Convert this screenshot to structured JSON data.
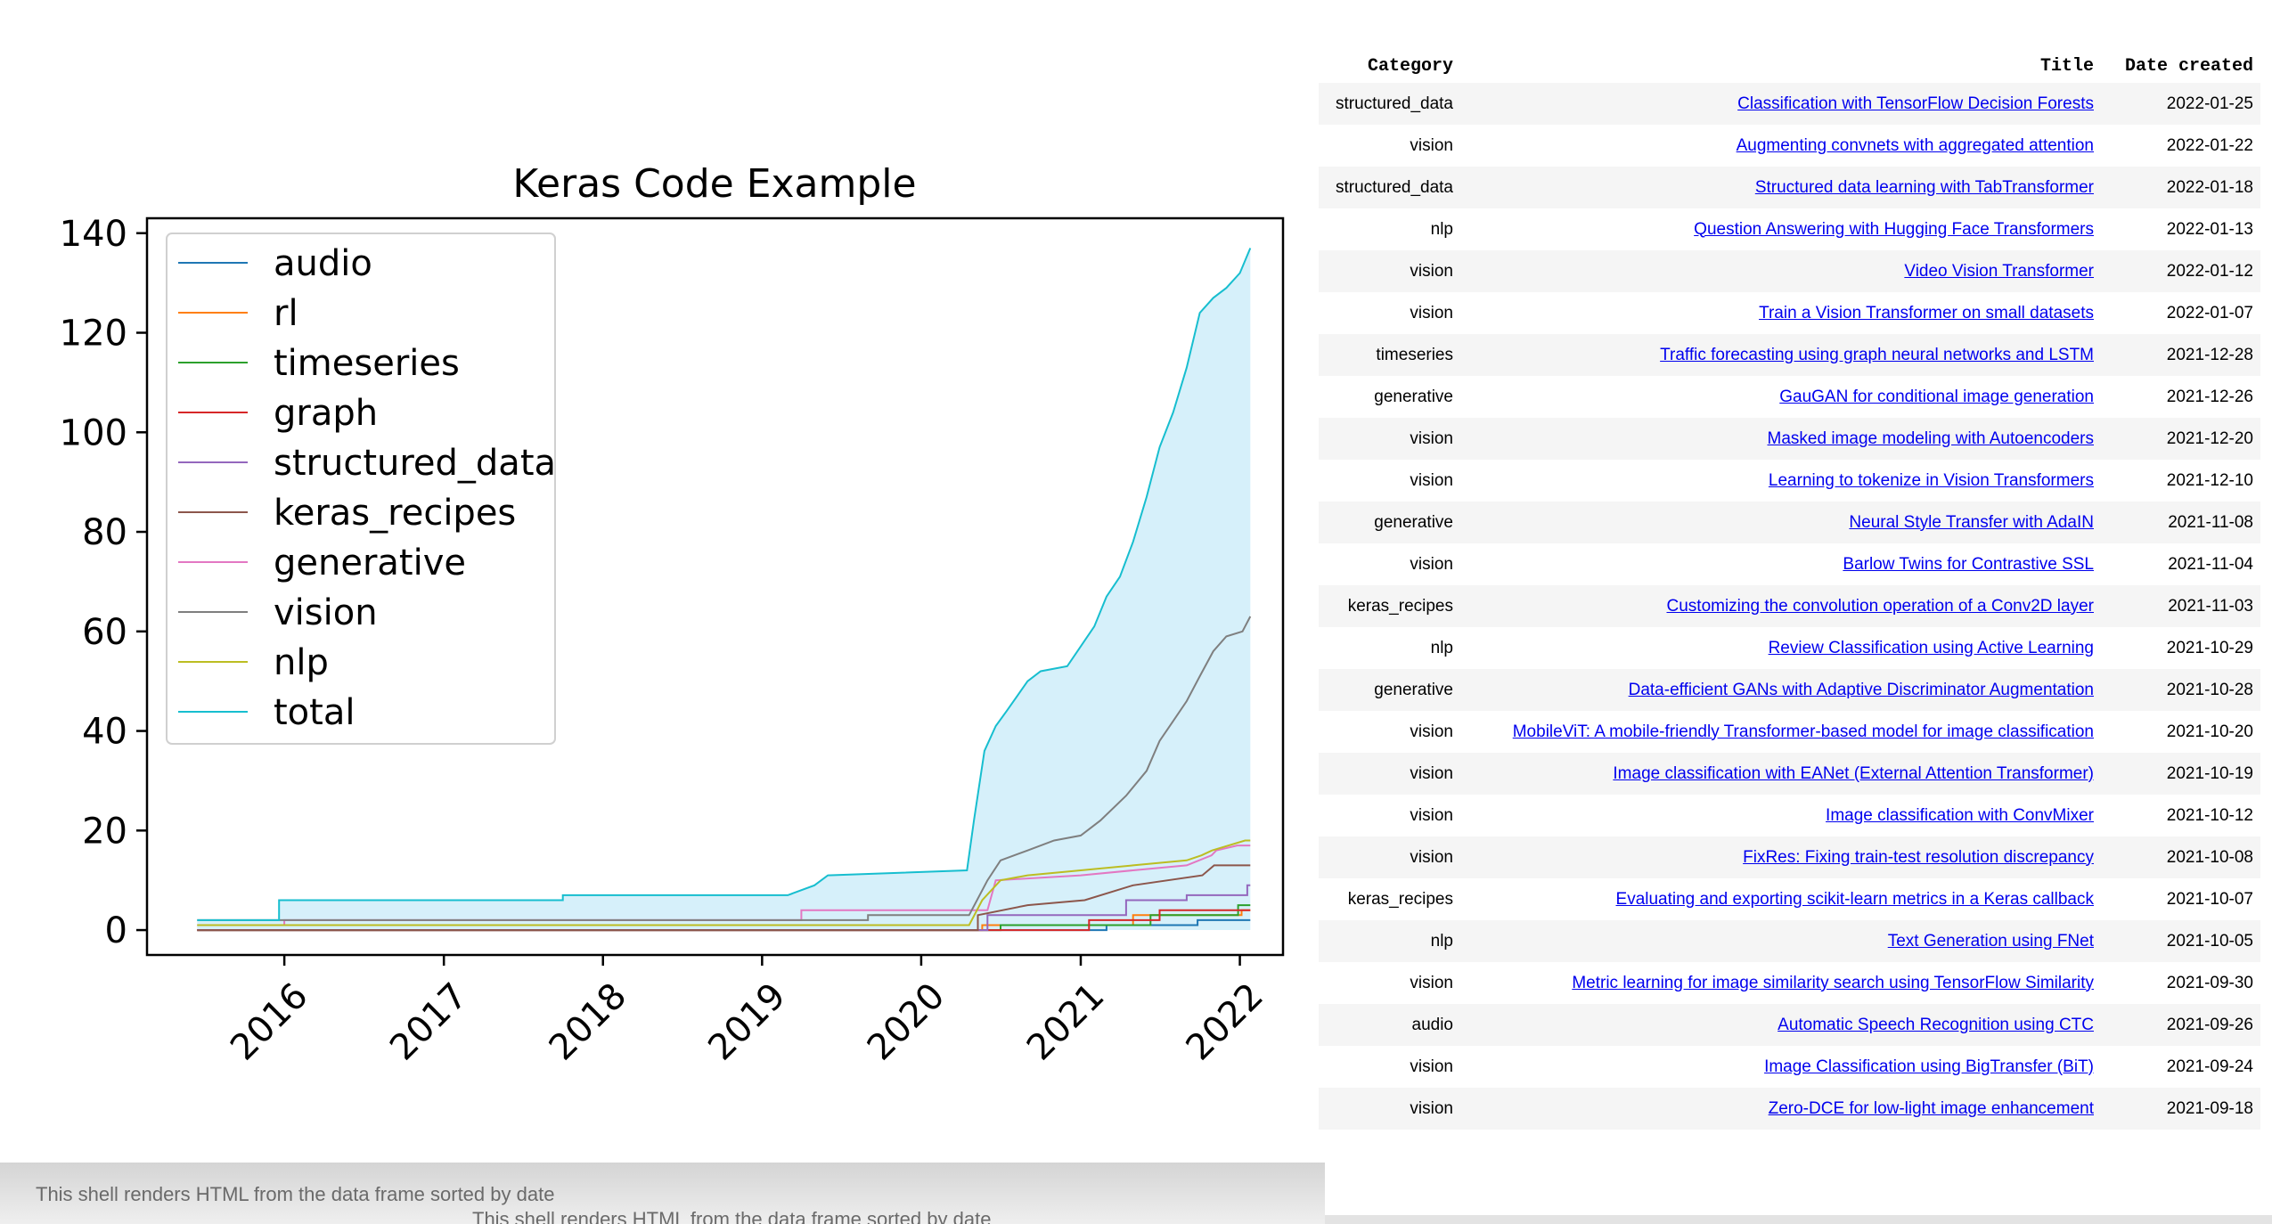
{
  "chart_data": {
    "type": "area",
    "title": "Keras Code Example",
    "xlabel": "",
    "ylabel": "",
    "ylim": [
      -5,
      143
    ],
    "xlim": [
      "2015-02-20",
      "2022-04-10"
    ],
    "yticks": [
      0,
      20,
      40,
      60,
      80,
      100,
      120,
      140
    ],
    "xticks": [
      "2016",
      "2017",
      "2018",
      "2019",
      "2020",
      "2021",
      "2022"
    ],
    "legend_placement": "top-left",
    "grid": false,
    "series": [
      {
        "name": "audio",
        "color": "#1f77b4",
        "points": [
          [
            "2015-06-15",
            0
          ],
          [
            "2021-03-01",
            0
          ],
          [
            "2021-03-01",
            1
          ],
          [
            "2021-09-26",
            1
          ],
          [
            "2021-09-26",
            2
          ],
          [
            "2022-01-25",
            2
          ]
        ]
      },
      {
        "name": "rl",
        "color": "#ff7f0e",
        "points": [
          [
            "2015-06-15",
            0
          ],
          [
            "2020-05-20",
            0
          ],
          [
            "2020-05-20",
            1
          ],
          [
            "2021-05-01",
            1
          ],
          [
            "2021-05-01",
            3
          ],
          [
            "2022-01-05",
            3
          ],
          [
            "2022-01-05",
            4
          ],
          [
            "2022-01-25",
            4
          ]
        ]
      },
      {
        "name": "timeseries",
        "color": "#2ca02c",
        "points": [
          [
            "2015-06-15",
            0
          ],
          [
            "2020-07-01",
            0
          ],
          [
            "2020-07-01",
            1
          ],
          [
            "2021-06-10",
            1
          ],
          [
            "2021-06-10",
            3
          ],
          [
            "2021-12-28",
            3
          ],
          [
            "2021-12-28",
            5
          ],
          [
            "2022-01-25",
            5
          ]
        ]
      },
      {
        "name": "graph",
        "color": "#d62728",
        "points": [
          [
            "2015-06-15",
            0
          ],
          [
            "2021-01-20",
            0
          ],
          [
            "2021-01-20",
            2
          ],
          [
            "2021-07-01",
            2
          ],
          [
            "2021-07-01",
            4
          ],
          [
            "2022-01-25",
            4
          ]
        ]
      },
      {
        "name": "structured_data",
        "color": "#9467bd",
        "points": [
          [
            "2015-06-15",
            0
          ],
          [
            "2020-06-01",
            0
          ],
          [
            "2020-06-01",
            3
          ],
          [
            "2021-04-15",
            3
          ],
          [
            "2021-04-15",
            6
          ],
          [
            "2021-09-01",
            6
          ],
          [
            "2021-09-01",
            7
          ],
          [
            "2022-01-18",
            7
          ],
          [
            "2022-01-18",
            9
          ],
          [
            "2022-01-25",
            9
          ]
        ]
      },
      {
        "name": "keras_recipes",
        "color": "#8c564b",
        "points": [
          [
            "2015-06-15",
            0
          ],
          [
            "2020-05-10",
            0
          ],
          [
            "2020-05-10",
            3
          ],
          [
            "2020-09-01",
            5
          ],
          [
            "2021-01-10",
            6
          ],
          [
            "2021-05-01",
            9
          ],
          [
            "2021-10-07",
            11
          ],
          [
            "2021-11-03",
            13
          ],
          [
            "2022-01-25",
            13
          ]
        ]
      },
      {
        "name": "generative",
        "color": "#e377c2",
        "points": [
          [
            "2015-06-15",
            1
          ],
          [
            "2016-01-01",
            1
          ],
          [
            "2016-01-01",
            2
          ],
          [
            "2019-04-01",
            2
          ],
          [
            "2019-04-01",
            4
          ],
          [
            "2020-06-01",
            4
          ],
          [
            "2020-06-20",
            10
          ],
          [
            "2021-01-01",
            11
          ],
          [
            "2021-05-01",
            12
          ],
          [
            "2021-09-01",
            13
          ],
          [
            "2021-10-28",
            15
          ],
          [
            "2021-11-08",
            16
          ],
          [
            "2021-12-26",
            17
          ],
          [
            "2022-01-25",
            17
          ]
        ]
      },
      {
        "name": "vision",
        "color": "#7f7f7f",
        "points": [
          [
            "2015-06-15",
            2
          ],
          [
            "2019-09-01",
            2
          ],
          [
            "2019-09-01",
            3
          ],
          [
            "2020-04-20",
            3
          ],
          [
            "2020-06-01",
            10
          ],
          [
            "2020-07-01",
            14
          ],
          [
            "2020-09-01",
            16
          ],
          [
            "2020-11-01",
            18
          ],
          [
            "2021-01-01",
            19
          ],
          [
            "2021-02-15",
            22
          ],
          [
            "2021-04-15",
            27
          ],
          [
            "2021-06-01",
            32
          ],
          [
            "2021-07-01",
            38
          ],
          [
            "2021-08-01",
            42
          ],
          [
            "2021-09-01",
            46
          ],
          [
            "2021-10-01",
            51
          ],
          [
            "2021-11-01",
            56
          ],
          [
            "2021-12-01",
            59
          ],
          [
            "2022-01-07",
            60
          ],
          [
            "2022-01-25",
            63
          ]
        ]
      },
      {
        "name": "nlp",
        "color": "#bcbd22",
        "points": [
          [
            "2015-06-15",
            1
          ],
          [
            "2020-04-20",
            1
          ],
          [
            "2020-05-20",
            6
          ],
          [
            "2020-07-01",
            10
          ],
          [
            "2020-09-01",
            11
          ],
          [
            "2021-01-01",
            12
          ],
          [
            "2021-05-01",
            13
          ],
          [
            "2021-09-01",
            14
          ],
          [
            "2021-10-05",
            15
          ],
          [
            "2021-10-29",
            16
          ],
          [
            "2022-01-13",
            18
          ],
          [
            "2022-01-25",
            18
          ]
        ]
      },
      {
        "name": "total",
        "color": "#17becf",
        "points": [
          [
            "2015-06-15",
            2
          ],
          [
            "2015-12-20",
            2
          ],
          [
            "2015-12-20",
            6
          ],
          [
            "2017-10-01",
            6
          ],
          [
            "2017-10-01",
            7
          ],
          [
            "2019-03-01",
            7
          ],
          [
            "2019-05-01",
            9
          ],
          [
            "2019-06-01",
            11
          ],
          [
            "2020-04-15",
            12
          ],
          [
            "2020-05-01",
            22
          ],
          [
            "2020-05-25",
            36
          ],
          [
            "2020-06-20",
            41
          ],
          [
            "2020-07-15",
            44
          ],
          [
            "2020-09-01",
            50
          ],
          [
            "2020-10-01",
            52
          ],
          [
            "2020-12-01",
            53
          ],
          [
            "2021-01-01",
            57
          ],
          [
            "2021-02-01",
            61
          ],
          [
            "2021-03-01",
            67
          ],
          [
            "2021-04-01",
            71
          ],
          [
            "2021-05-01",
            78
          ],
          [
            "2021-06-01",
            87
          ],
          [
            "2021-07-01",
            97
          ],
          [
            "2021-08-01",
            104
          ],
          [
            "2021-09-01",
            113
          ],
          [
            "2021-10-01",
            124
          ],
          [
            "2021-11-01",
            127
          ],
          [
            "2021-12-01",
            129
          ],
          [
            "2022-01-01",
            132
          ],
          [
            "2022-01-25",
            137
          ]
        ]
      }
    ]
  },
  "table": {
    "headers": {
      "category": "Category",
      "title": "Title",
      "date": "Date created"
    },
    "rows": [
      {
        "category": "structured_data",
        "title": "Classification with TensorFlow Decision Forests",
        "date": "2022-01-25"
      },
      {
        "category": "vision",
        "title": "Augmenting convnets with aggregated attention",
        "date": "2022-01-22"
      },
      {
        "category": "structured_data",
        "title": "Structured data learning with TabTransformer",
        "date": "2022-01-18"
      },
      {
        "category": "nlp",
        "title": "Question Answering with Hugging Face Transformers",
        "date": "2022-01-13"
      },
      {
        "category": "vision",
        "title": "Video Vision Transformer",
        "date": "2022-01-12"
      },
      {
        "category": "vision",
        "title": "Train a Vision Transformer on small datasets",
        "date": "2022-01-07"
      },
      {
        "category": "timeseries",
        "title": "Traffic forecasting using graph neural networks and LSTM",
        "date": "2021-12-28"
      },
      {
        "category": "generative",
        "title": "GauGAN for conditional image generation",
        "date": "2021-12-26"
      },
      {
        "category": "vision",
        "title": "Masked image modeling with Autoencoders",
        "date": "2021-12-20"
      },
      {
        "category": "vision",
        "title": "Learning to tokenize in Vision Transformers",
        "date": "2021-12-10"
      },
      {
        "category": "generative",
        "title": "Neural Style Transfer with AdaIN",
        "date": "2021-11-08"
      },
      {
        "category": "vision",
        "title": "Barlow Twins for Contrastive SSL",
        "date": "2021-11-04"
      },
      {
        "category": "keras_recipes",
        "title": "Customizing the convolution operation of a Conv2D layer",
        "date": "2021-11-03"
      },
      {
        "category": "nlp",
        "title": "Review Classification using Active Learning",
        "date": "2021-10-29"
      },
      {
        "category": "generative",
        "title": "Data-efficient GANs with Adaptive Discriminator Augmentation",
        "date": "2021-10-28"
      },
      {
        "category": "vision",
        "title": "MobileViT: A mobile-friendly Transformer-based model for image classification",
        "date": "2021-10-20"
      },
      {
        "category": "vision",
        "title": "Image classification with EANet (External Attention Transformer)",
        "date": "2021-10-19"
      },
      {
        "category": "vision",
        "title": "Image classification with ConvMixer",
        "date": "2021-10-12"
      },
      {
        "category": "vision",
        "title": "FixRes: Fixing train-test resolution discrepancy",
        "date": "2021-10-08"
      },
      {
        "category": "keras_recipes",
        "title": "Evaluating and exporting scikit-learn metrics in a Keras callback",
        "date": "2021-10-07"
      },
      {
        "category": "nlp",
        "title": "Text Generation using FNet",
        "date": "2021-10-05"
      },
      {
        "category": "vision",
        "title": "Metric learning for image similarity search using TensorFlow Similarity",
        "date": "2021-09-30"
      },
      {
        "category": "audio",
        "title": "Automatic Speech Recognition using CTC",
        "date": "2021-09-26"
      },
      {
        "category": "vision",
        "title": "Image Classification using BigTransfer (BiT)",
        "date": "2021-09-24"
      },
      {
        "category": "vision",
        "title": "Zero-DCE for low-light image enhancement",
        "date": "2021-09-18"
      }
    ]
  },
  "footer": {
    "caption_back": "This shell renders HTML from the data frame sorted by date",
    "caption_front": "This shell renders HTML from the data frame sorted by date"
  }
}
